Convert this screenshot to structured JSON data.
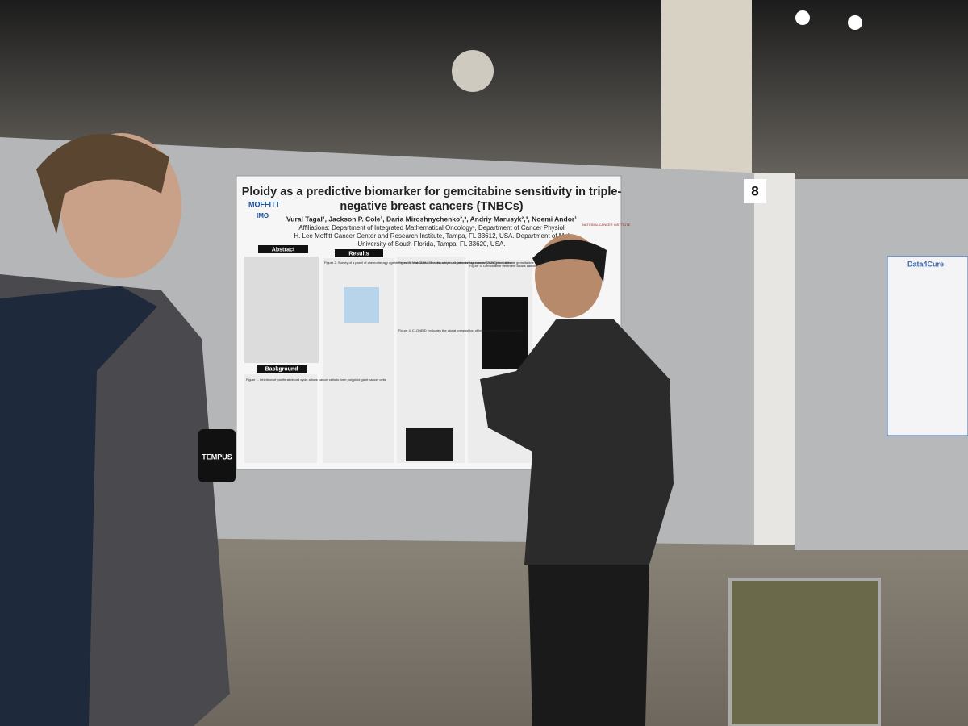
{
  "poster": {
    "title_lines": [
      "Ploidy as a predictive biomarker for gemcitabine sensitivity in triple-",
      "negative breast cancers (TNBCs)"
    ],
    "authors": "Vural Tagal¹, Jackson P. Cole¹, Daria Miroshnychenko²,³, Andriy Marusyk²,³, Noemi Andor¹",
    "affiliation_lines": [
      "Affiliations: Department of Integrated Mathematical Oncology¹, Department of Cancer Physiol",
      "H. Lee Moffitt Cancer Center and Research Institute, Tampa, FL 33612, USA. Department of Mol",
      "University of South Florida, Tampa, FL 33620, USA."
    ],
    "logos": [
      "MOFFITT",
      "IMO",
      "NATIONAL CANCER INSTITUTE"
    ],
    "sections": [
      "Abstract",
      "Background",
      "Results"
    ],
    "figure_captions": [
      "Figure 1. Inhibition of proliferative cell cycle allows cancer cells to form polyploid giant cancer cells",
      "Figure 2. Survey of a panel of chemotherapy agents revealed that SUM-159 cells, a triple-negative breast cancer (TNBC) line, tolerate gemcitabine when tetraploidized",
      "Figure 3. Near-diploid breast cancer cell lines are hypersensitive to gemcitabine",
      "Figure 4. CLONEID evaluates the clonal composition of heterogeneous cell populations",
      "Figure 5. Gemcitabine treatment allows cancer cells to develop into PGCCs/PACCs"
    ]
  },
  "board_number": "8",
  "cup_label": "TEMPUS",
  "right_poster_logo": "Data4Cure"
}
